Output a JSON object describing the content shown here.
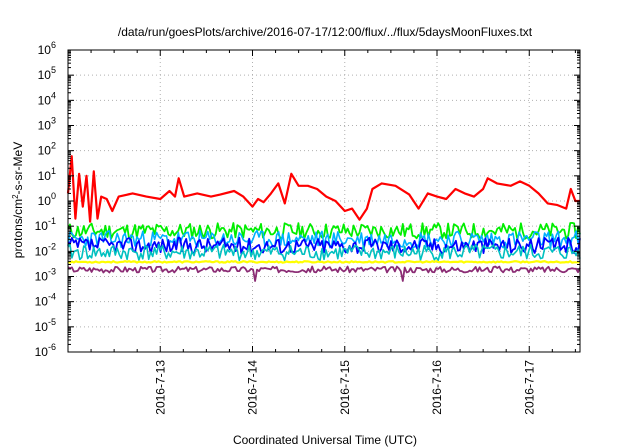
{
  "chart_data": {
    "type": "line",
    "title": "/data/run/goesPlots/archive/2016-07-17/12:00/flux/../flux/5daysMoonFluxes.txt",
    "xlabel": "Coordinated Universal Time (UTC)",
    "ylabel": {
      "base": "protons/cm",
      "sup": "2",
      "rest": "-s-sr-MeV"
    },
    "yscale": "log",
    "ylim_exp": [
      -6,
      6
    ],
    "yticks": [
      {
        "base": "10",
        "exp": "6"
      },
      {
        "base": "10",
        "exp": "5"
      },
      {
        "base": "10",
        "exp": "4"
      },
      {
        "base": "10",
        "exp": "3"
      },
      {
        "base": "10",
        "exp": "2"
      },
      {
        "base": "10",
        "exp": "1"
      },
      {
        "base": "10",
        "exp": "0"
      },
      {
        "base": "10",
        "exp": "-1"
      },
      {
        "base": "10",
        "exp": "-2"
      },
      {
        "base": "10",
        "exp": "-3"
      },
      {
        "base": "10",
        "exp": "-4"
      },
      {
        "base": "10",
        "exp": "-5"
      },
      {
        "base": "10",
        "exp": "-6"
      }
    ],
    "xlim": [
      0,
      5.55
    ],
    "xticks": [
      {
        "label": "2016-7-13",
        "x": 1
      },
      {
        "label": "2016-7-14",
        "x": 2
      },
      {
        "label": "2016-7-15",
        "x": 3
      },
      {
        "label": "2016-7-16",
        "x": 4
      },
      {
        "label": "2016-7-17",
        "x": 5
      }
    ],
    "grid": true,
    "series": [
      {
        "color": "#ff0000",
        "width": 2.2,
        "points": [
          [
            0,
            2
          ],
          [
            0.04,
            60
          ],
          [
            0.08,
            0.2
          ],
          [
            0.12,
            12
          ],
          [
            0.16,
            0.6
          ],
          [
            0.2,
            10
          ],
          [
            0.24,
            0.15
          ],
          [
            0.28,
            15
          ],
          [
            0.32,
            0.2
          ],
          [
            0.36,
            1.5
          ],
          [
            0.42,
            1.2
          ],
          [
            0.48,
            0.4
          ],
          [
            0.55,
            1.5
          ],
          [
            0.7,
            2
          ],
          [
            0.85,
            1.5
          ],
          [
            1.0,
            1.2
          ],
          [
            1.1,
            2.5
          ],
          [
            1.16,
            1.5
          ],
          [
            1.2,
            8
          ],
          [
            1.26,
            1.5
          ],
          [
            1.4,
            2
          ],
          [
            1.55,
            1.5
          ],
          [
            1.65,
            1.8
          ],
          [
            1.8,
            2.5
          ],
          [
            1.9,
            1.5
          ],
          [
            2.0,
            0.6
          ],
          [
            2.06,
            1.2
          ],
          [
            2.12,
            0.9
          ],
          [
            2.2,
            2
          ],
          [
            2.28,
            5
          ],
          [
            2.35,
            0.8
          ],
          [
            2.42,
            12
          ],
          [
            2.5,
            4
          ],
          [
            2.6,
            4
          ],
          [
            2.7,
            3
          ],
          [
            2.8,
            1.5
          ],
          [
            2.9,
            1
          ],
          [
            3.0,
            0.4
          ],
          [
            3.08,
            0.5
          ],
          [
            3.16,
            0.18
          ],
          [
            3.24,
            0.5
          ],
          [
            3.3,
            3
          ],
          [
            3.4,
            5
          ],
          [
            3.55,
            4
          ],
          [
            3.7,
            1.8
          ],
          [
            3.8,
            0.5
          ],
          [
            3.9,
            2
          ],
          [
            4.0,
            1.5
          ],
          [
            4.1,
            1.2
          ],
          [
            4.2,
            3
          ],
          [
            4.3,
            2
          ],
          [
            4.4,
            1.5
          ],
          [
            4.5,
            3
          ],
          [
            4.55,
            8
          ],
          [
            4.65,
            5
          ],
          [
            4.8,
            4
          ],
          [
            4.9,
            6
          ],
          [
            5.0,
            4
          ],
          [
            5.1,
            2
          ],
          [
            5.2,
            0.8
          ],
          [
            5.3,
            0.7
          ],
          [
            5.4,
            0.5
          ],
          [
            5.45,
            3
          ],
          [
            5.5,
            1
          ],
          [
            5.55,
            1
          ]
        ]
      },
      {
        "color": "#00ee00",
        "width": 1.8,
        "base": 0.065,
        "amp": 0.32,
        "seed": 11
      },
      {
        "color": "#00b0ff",
        "width": 1.6,
        "base": 0.03,
        "amp": 0.35,
        "seed": 23
      },
      {
        "color": "#0000ff",
        "width": 1.8,
        "base": 0.017,
        "amp": 0.32,
        "seed": 37
      },
      {
        "color": "#00c0c0",
        "width": 1.6,
        "base": 0.009,
        "amp": 0.32,
        "seed": 41
      },
      {
        "color": "#ffff00",
        "width": 2.2,
        "base": 0.0038,
        "amp": 0.03,
        "seed": 53
      },
      {
        "color": "#8b2c74",
        "width": 1.8,
        "base": 0.0019,
        "amp": 0.12,
        "seed": 67
      }
    ]
  }
}
